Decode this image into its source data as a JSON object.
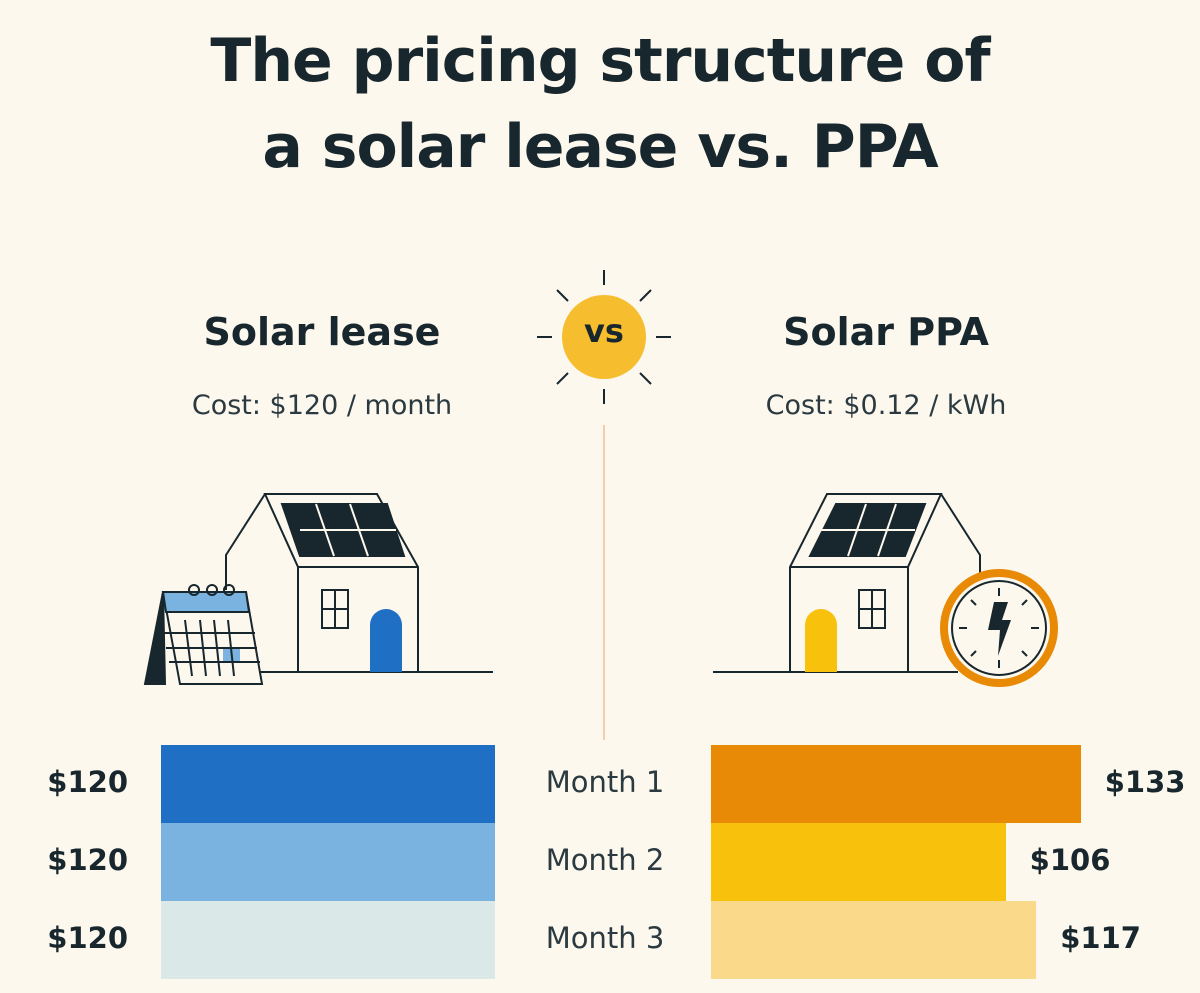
{
  "title_line1": "The pricing structure of",
  "title_line2": "a solar lease vs. PPA",
  "vs_label": "vs",
  "lease": {
    "heading": "Solar lease",
    "cost": "Cost: $120 / month"
  },
  "ppa": {
    "heading": "Solar PPA",
    "cost": "Cost: $0.12 / kWh"
  },
  "chart_data": {
    "type": "bar",
    "categories": [
      "Month 1",
      "Month 2",
      "Month 3"
    ],
    "series": [
      {
        "name": "Solar lease",
        "values": [
          120,
          120,
          120
        ],
        "labels": [
          "$120",
          "$120",
          "$120"
        ],
        "colors": [
          "#1f6fc4",
          "#7ab3df",
          "#dbe8e8"
        ]
      },
      {
        "name": "Solar PPA",
        "values": [
          133,
          106,
          117
        ],
        "labels": [
          "$133",
          "$106",
          "$117"
        ],
        "colors": [
          "#e98a07",
          "#f8c10c",
          "#fad98a"
        ]
      }
    ]
  },
  "colors": {
    "ink": "#17272d",
    "lease_door": "#1f6fc4",
    "ppa_door": "#f8c10c",
    "sun": "#f6bd2e",
    "meter_ring": "#e98a07",
    "calendar_top": "#7ab3df"
  }
}
